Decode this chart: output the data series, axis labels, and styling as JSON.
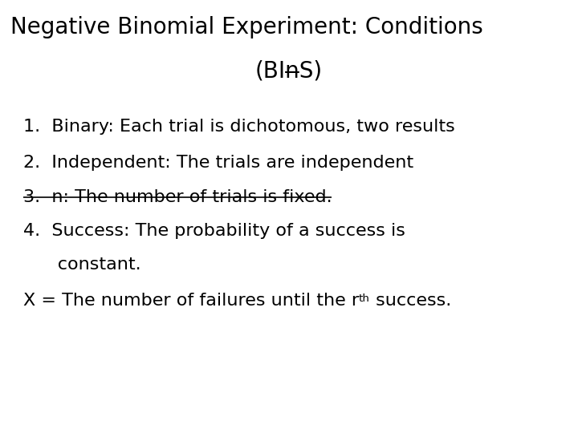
{
  "title_line1": "Negative Binomial Experiment: Conditions",
  "title_line2": "(BIn̶S)",
  "item1": "1.  Binary: Each trial is dichotomous, two results",
  "item2": "2.  Independent: The trials are independent",
  "item3_num": "3.",
  "item3_text": "  n: The number of trials is fixed.",
  "item4a": "4.  Success: The probability of a success is",
  "item4b": "      constant.",
  "footer_pre": "X = The number of failures until the r",
  "footer_sup": "th",
  "footer_post": " success.",
  "bg_color": "#ffffff",
  "text_color": "#000000",
  "title_fontsize": 20,
  "body_fontsize": 16,
  "font_family": "DejaVu Sans"
}
